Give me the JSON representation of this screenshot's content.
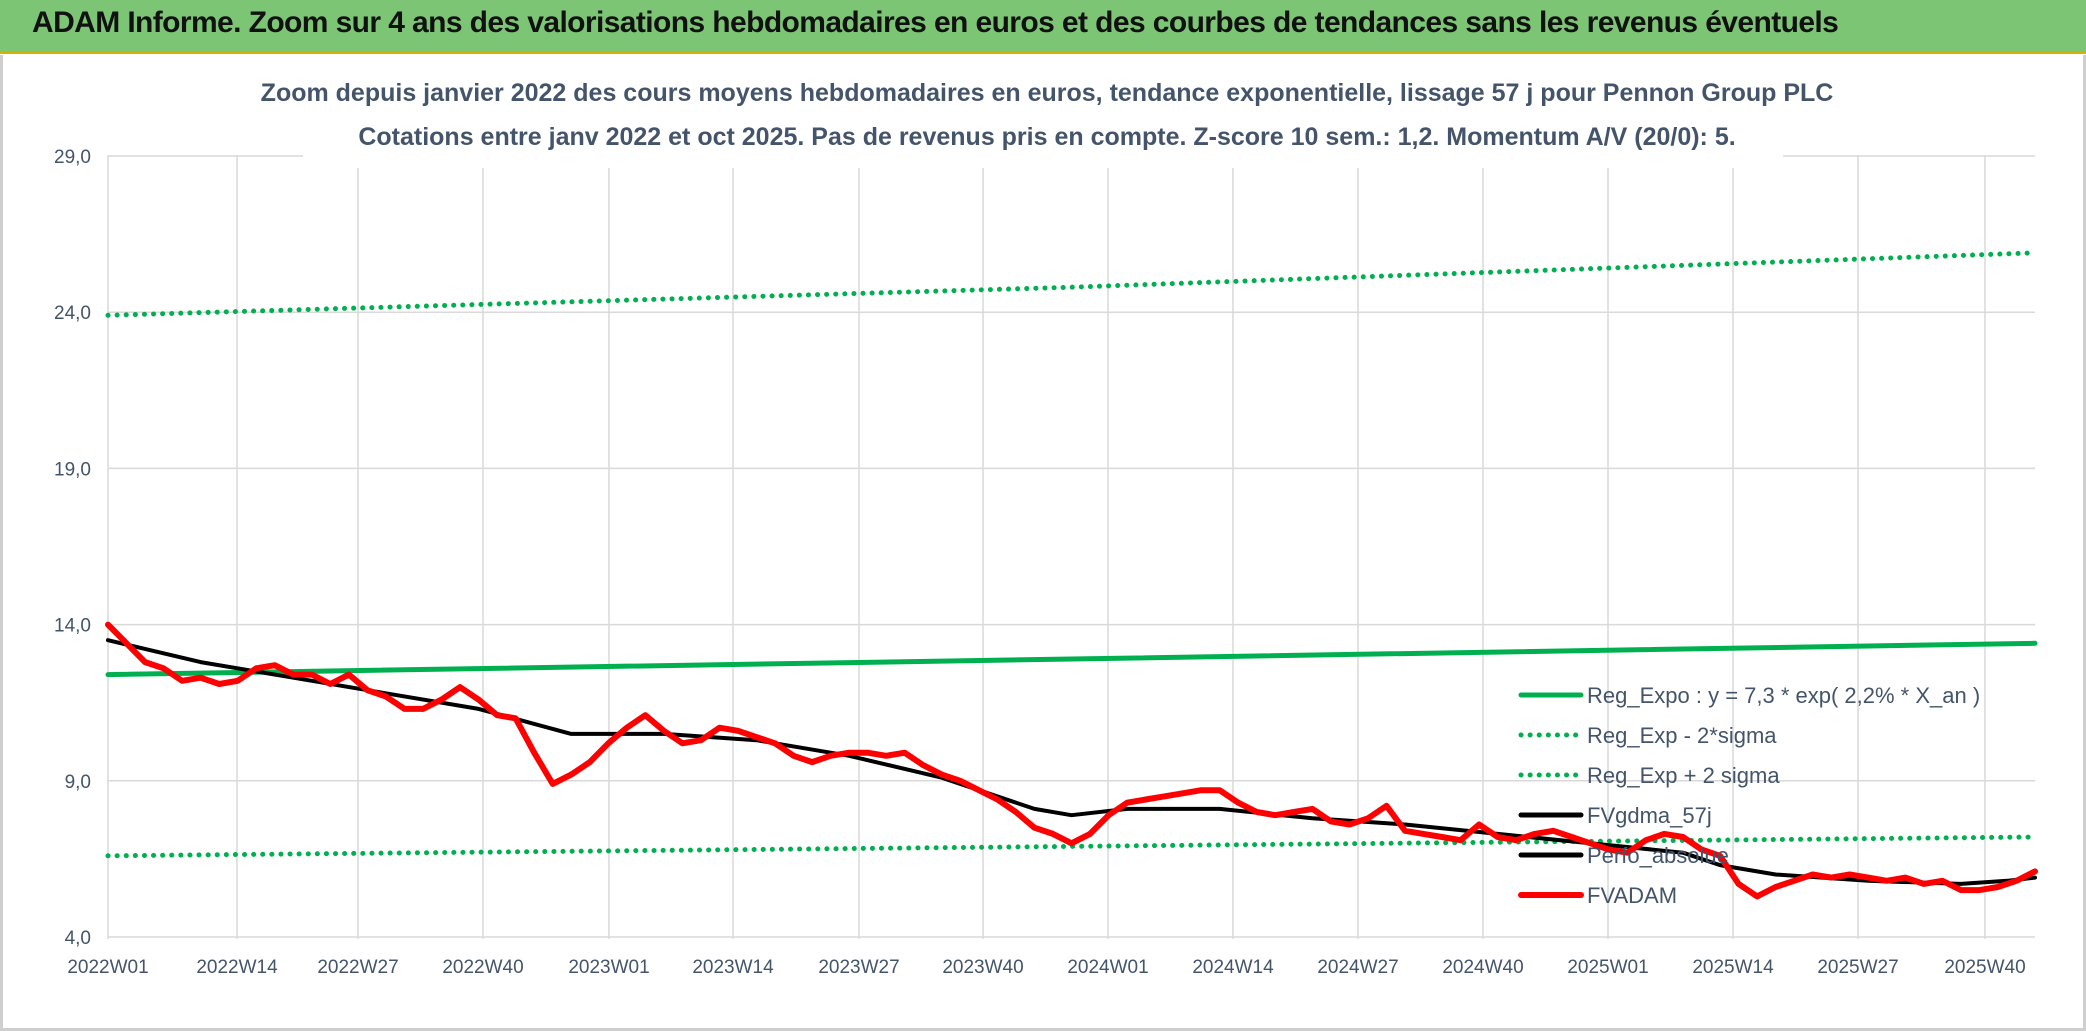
{
  "banner": {
    "title": "ADAM Informe. Zoom sur 4 ans des valorisations hebdomadaires en euros et des courbes de tendances sans les revenus éventuels"
  },
  "colors": {
    "banner_bg": "#7cc575",
    "trend_green": "#00b050",
    "price_red": "#ff0000",
    "smooth_black": "#000000",
    "text": "#44546a"
  },
  "chart_data": {
    "type": "line",
    "title": "Zoom depuis janvier 2022 des cours moyens hebdomadaires en euros, tendance exponentielle, lissage 57 j pour Pennon Group PLC",
    "subtitle": "Cotations entre janv 2022 et oct 2025. Pas de revenus pris en compte. Z-score 10 sem.: 1,2. Momentum A/V (20/0): 5.",
    "xlabel": "",
    "ylabel": "",
    "ylim": [
      4.0,
      29.0
    ],
    "y_ticks": [
      "4,0",
      "9,0",
      "14,0",
      "19,0",
      "24,0",
      "29,0"
    ],
    "x_ticks": [
      "2022W01",
      "2022W14",
      "2022W27",
      "2022W40",
      "2023W01",
      "2023W14",
      "2023W27",
      "2023W40",
      "2024W01",
      "2024W14",
      "2024W27",
      "2024W40",
      "2025W01",
      "2025W14",
      "2025W27",
      "2025W40"
    ],
    "grid": true,
    "legend_position": "bottom-right",
    "series": [
      {
        "name": "Reg_Expo : y = 7,3 * exp( 2,2% *  X_an )",
        "style": "solid",
        "color": "#00b050",
        "points": [
          [
            0,
            12.4
          ],
          [
            104,
            12.9
          ],
          [
            208,
            13.4
          ]
        ]
      },
      {
        "name": "Reg_Exp - 2*sigma",
        "style": "dotted",
        "color": "#00b050",
        "points": [
          [
            0,
            6.6
          ],
          [
            104,
            6.9
          ],
          [
            208,
            7.2
          ]
        ]
      },
      {
        "name": "Reg_Exp + 2 sigma",
        "style": "dotted",
        "color": "#00b050",
        "points": [
          [
            0,
            23.9
          ],
          [
            104,
            24.8
          ],
          [
            208,
            25.9
          ]
        ]
      },
      {
        "name": "FVgdma_57j",
        "style": "solid",
        "color": "#000000",
        "points": [
          [
            0,
            13.5
          ],
          [
            10,
            12.8
          ],
          [
            20,
            12.3
          ],
          [
            30,
            11.8
          ],
          [
            40,
            11.3
          ],
          [
            50,
            10.5
          ],
          [
            60,
            10.5
          ],
          [
            70,
            10.3
          ],
          [
            80,
            9.8
          ],
          [
            90,
            9.1
          ],
          [
            100,
            8.1
          ],
          [
            104,
            7.9
          ],
          [
            110,
            8.1
          ],
          [
            120,
            8.1
          ],
          [
            130,
            7.8
          ],
          [
            140,
            7.6
          ],
          [
            150,
            7.3
          ],
          [
            160,
            7.0
          ],
          [
            170,
            6.7
          ],
          [
            174,
            6.3
          ],
          [
            180,
            6.0
          ],
          [
            190,
            5.8
          ],
          [
            200,
            5.7
          ],
          [
            205,
            5.8
          ],
          [
            208,
            5.9
          ]
        ]
      },
      {
        "name": "Perfo_absolue",
        "style": "solid",
        "color": "#000000",
        "points": []
      },
      {
        "name": "FVADAM",
        "style": "solid",
        "color": "#ff0000",
        "points": [
          [
            0,
            14.0
          ],
          [
            2,
            13.4
          ],
          [
            4,
            12.8
          ],
          [
            6,
            12.6
          ],
          [
            8,
            12.2
          ],
          [
            10,
            12.3
          ],
          [
            12,
            12.1
          ],
          [
            14,
            12.2
          ],
          [
            16,
            12.6
          ],
          [
            18,
            12.7
          ],
          [
            20,
            12.4
          ],
          [
            22,
            12.4
          ],
          [
            24,
            12.1
          ],
          [
            26,
            12.4
          ],
          [
            28,
            11.9
          ],
          [
            30,
            11.7
          ],
          [
            32,
            11.3
          ],
          [
            34,
            11.3
          ],
          [
            36,
            11.6
          ],
          [
            38,
            12.0
          ],
          [
            40,
            11.6
          ],
          [
            42,
            11.1
          ],
          [
            44,
            11.0
          ],
          [
            46,
            9.9
          ],
          [
            48,
            8.9
          ],
          [
            50,
            9.2
          ],
          [
            52,
            9.6
          ],
          [
            54,
            10.2
          ],
          [
            56,
            10.7
          ],
          [
            58,
            11.1
          ],
          [
            60,
            10.6
          ],
          [
            62,
            10.2
          ],
          [
            64,
            10.3
          ],
          [
            66,
            10.7
          ],
          [
            68,
            10.6
          ],
          [
            70,
            10.4
          ],
          [
            72,
            10.2
          ],
          [
            74,
            9.8
          ],
          [
            76,
            9.6
          ],
          [
            78,
            9.8
          ],
          [
            80,
            9.9
          ],
          [
            82,
            9.9
          ],
          [
            84,
            9.8
          ],
          [
            86,
            9.9
          ],
          [
            88,
            9.5
          ],
          [
            90,
            9.2
          ],
          [
            92,
            9.0
          ],
          [
            94,
            8.7
          ],
          [
            96,
            8.4
          ],
          [
            98,
            8.0
          ],
          [
            100,
            7.5
          ],
          [
            102,
            7.3
          ],
          [
            104,
            7.0
          ],
          [
            106,
            7.3
          ],
          [
            108,
            7.9
          ],
          [
            110,
            8.3
          ],
          [
            112,
            8.4
          ],
          [
            114,
            8.5
          ],
          [
            116,
            8.6
          ],
          [
            118,
            8.7
          ],
          [
            120,
            8.7
          ],
          [
            122,
            8.3
          ],
          [
            124,
            8.0
          ],
          [
            126,
            7.9
          ],
          [
            128,
            8.0
          ],
          [
            130,
            8.1
          ],
          [
            132,
            7.7
          ],
          [
            134,
            7.6
          ],
          [
            136,
            7.8
          ],
          [
            138,
            8.2
          ],
          [
            140,
            7.4
          ],
          [
            142,
            7.3
          ],
          [
            144,
            7.2
          ],
          [
            146,
            7.1
          ],
          [
            148,
            7.6
          ],
          [
            150,
            7.2
          ],
          [
            152,
            7.1
          ],
          [
            154,
            7.3
          ],
          [
            156,
            7.4
          ],
          [
            158,
            7.2
          ],
          [
            160,
            7.0
          ],
          [
            162,
            6.8
          ],
          [
            164,
            6.7
          ],
          [
            166,
            7.1
          ],
          [
            168,
            7.3
          ],
          [
            170,
            7.2
          ],
          [
            172,
            6.8
          ],
          [
            174,
            6.6
          ],
          [
            176,
            5.7
          ],
          [
            178,
            5.3
          ],
          [
            180,
            5.6
          ],
          [
            182,
            5.8
          ],
          [
            184,
            6.0
          ],
          [
            186,
            5.9
          ],
          [
            188,
            6.0
          ],
          [
            190,
            5.9
          ],
          [
            192,
            5.8
          ],
          [
            194,
            5.9
          ],
          [
            196,
            5.7
          ],
          [
            198,
            5.8
          ],
          [
            200,
            5.5
          ],
          [
            202,
            5.5
          ],
          [
            204,
            5.6
          ],
          [
            206,
            5.8
          ],
          [
            208,
            6.1
          ]
        ]
      }
    ]
  }
}
